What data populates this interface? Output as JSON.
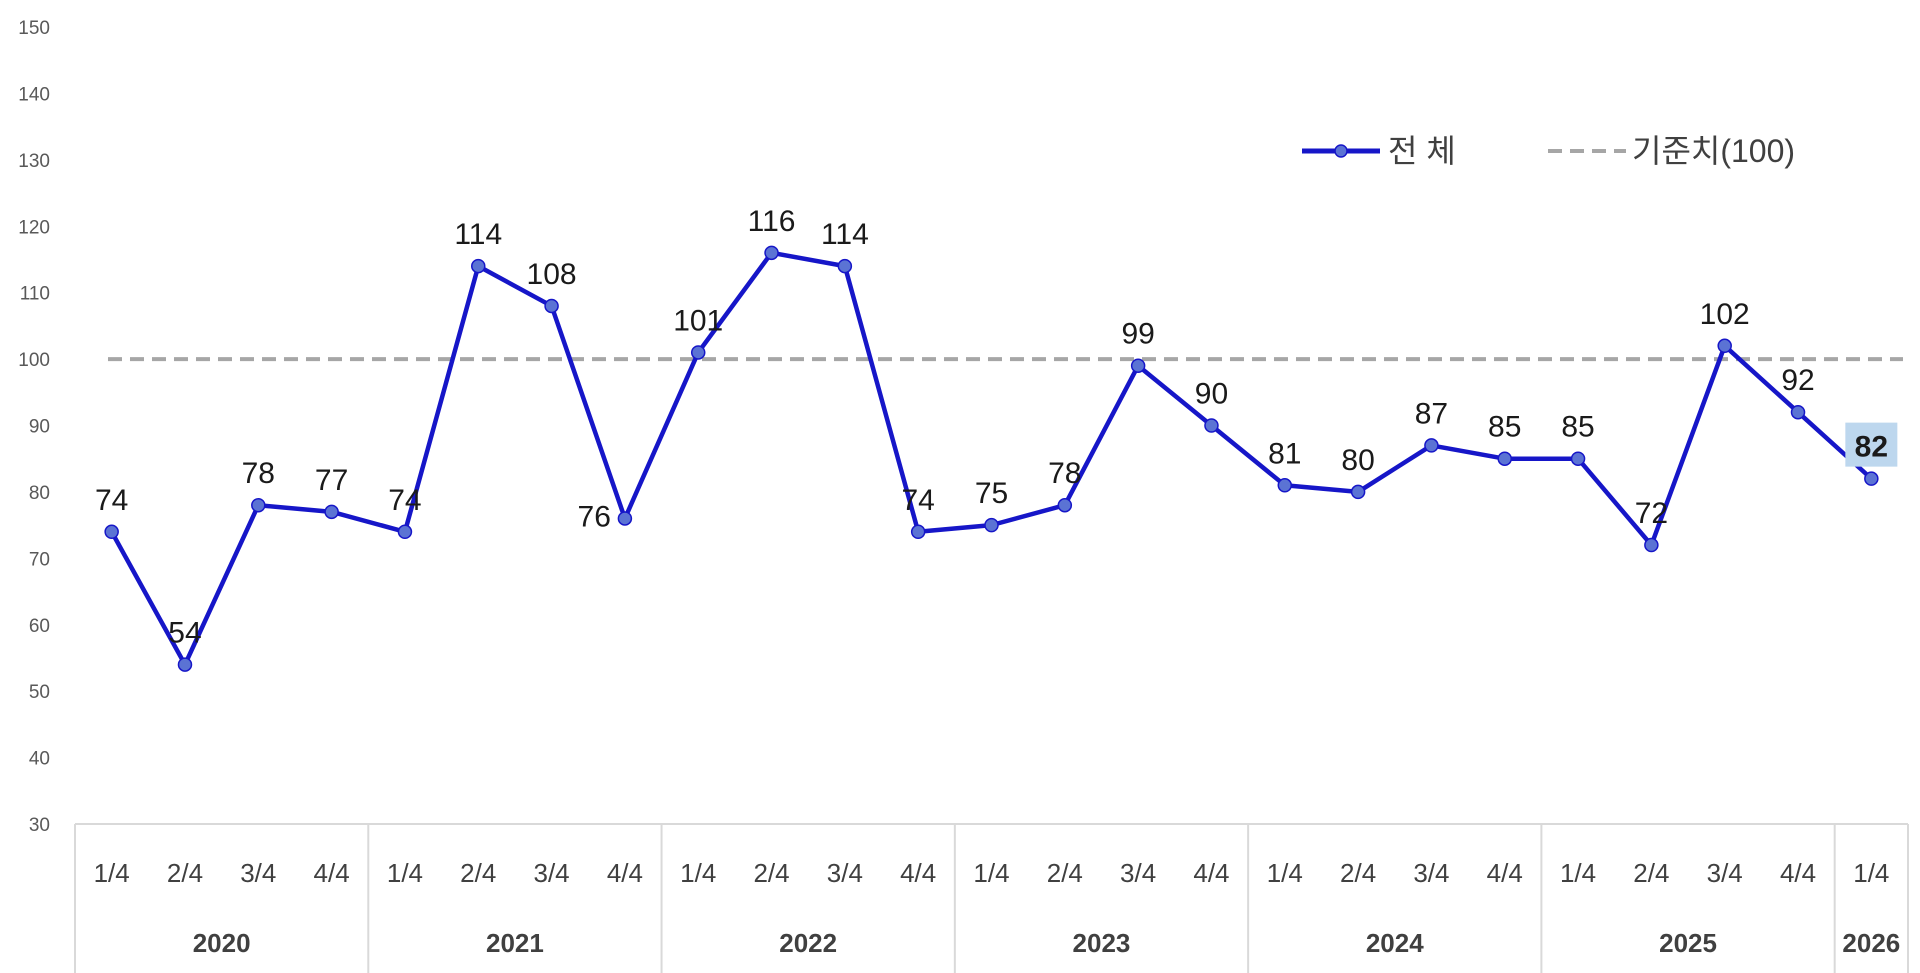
{
  "colors": {
    "series": "#1616c8",
    "marker": "#5b73d4",
    "reference": "#a6a6a6",
    "axis": "#d9d9d9",
    "highlight": "#bdd7ee"
  },
  "legend": {
    "series_label": "전 체",
    "reference_label": "기준치(100)"
  },
  "chart_data": {
    "type": "line",
    "ylim": [
      30,
      150
    ],
    "yticks": [
      "30",
      "40",
      "50",
      "60",
      "70",
      "80",
      "90",
      "100",
      "110",
      "120",
      "130",
      "140",
      "150"
    ],
    "grid": false,
    "legend_position": "top-right",
    "categories": [
      {
        "quarter": "1/4",
        "year": "2020"
      },
      {
        "quarter": "2/4",
        "year": "2020"
      },
      {
        "quarter": "3/4",
        "year": "2020"
      },
      {
        "quarter": "4/4",
        "year": "2020"
      },
      {
        "quarter": "1/4",
        "year": "2021"
      },
      {
        "quarter": "2/4",
        "year": "2021"
      },
      {
        "quarter": "3/4",
        "year": "2021"
      },
      {
        "quarter": "4/4",
        "year": "2021"
      },
      {
        "quarter": "1/4",
        "year": "2022"
      },
      {
        "quarter": "2/4",
        "year": "2022"
      },
      {
        "quarter": "3/4",
        "year": "2022"
      },
      {
        "quarter": "4/4",
        "year": "2022"
      },
      {
        "quarter": "1/4",
        "year": "2023"
      },
      {
        "quarter": "2/4",
        "year": "2023"
      },
      {
        "quarter": "3/4",
        "year": "2023"
      },
      {
        "quarter": "4/4",
        "year": "2023"
      },
      {
        "quarter": "1/4",
        "year": "2024"
      },
      {
        "quarter": "2/4",
        "year": "2024"
      },
      {
        "quarter": "3/4",
        "year": "2024"
      },
      {
        "quarter": "4/4",
        "year": "2024"
      },
      {
        "quarter": "1/4",
        "year": "2025"
      },
      {
        "quarter": "2/4",
        "year": "2025"
      },
      {
        "quarter": "3/4",
        "year": "2025"
      },
      {
        "quarter": "4/4",
        "year": "2025"
      },
      {
        "quarter": "1/4",
        "year": "2026"
      }
    ],
    "years": [
      "2020",
      "2021",
      "2022",
      "2023",
      "2024",
      "2025",
      "2026"
    ],
    "series": [
      {
        "name": "전 체",
        "values": [
          74,
          54,
          78,
          77,
          74,
          114,
          108,
          76,
          101,
          116,
          114,
          74,
          75,
          78,
          99,
          90,
          81,
          80,
          87,
          85,
          85,
          72,
          102,
          92,
          82
        ],
        "highlight_last": true
      }
    ],
    "reference_line": {
      "name": "기준치(100)",
      "value": 100
    }
  }
}
